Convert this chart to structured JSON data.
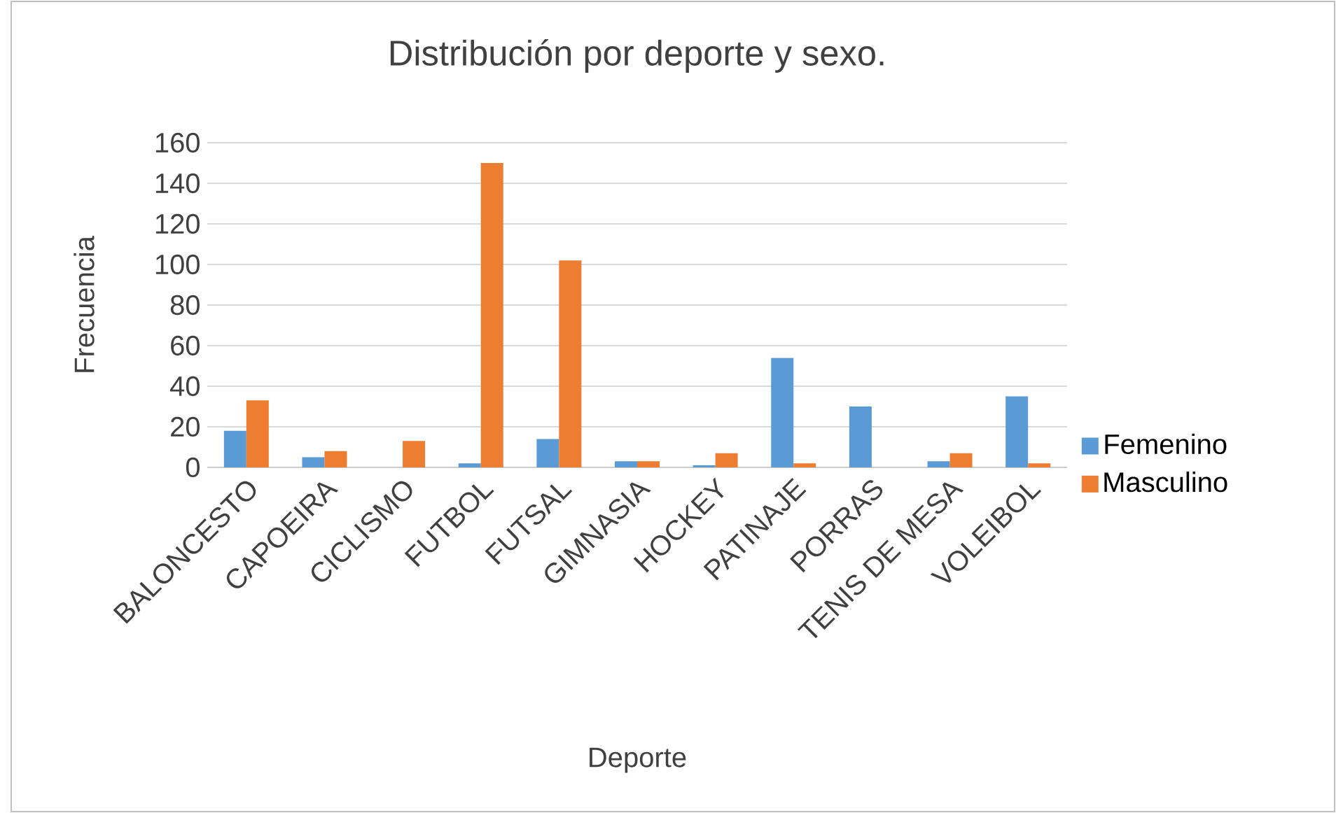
{
  "chart_data": {
    "type": "bar",
    "title": "Distribución por deporte y sexo.",
    "xlabel": "Deporte",
    "ylabel": "Frecuencia",
    "categories": [
      "BALONCESTO",
      "CAPOEIRA",
      "CICLISMO",
      "FUTBOL",
      "FUTSAL",
      "GIMNASIA",
      "HOCKEY",
      "PATINAJE",
      "PORRAS",
      "TENIS DE MESA",
      "VOLEIBOL"
    ],
    "series": [
      {
        "name": "Femenino",
        "color": "#5b9bd5",
        "values": [
          18,
          5,
          0,
          2,
          14,
          3,
          1,
          54,
          30,
          3,
          35
        ]
      },
      {
        "name": "Masculino",
        "color": "#ed7d31",
        "values": [
          33,
          8,
          13,
          150,
          102,
          3,
          7,
          2,
          0,
          7,
          2
        ]
      }
    ],
    "ylim": [
      0,
      160
    ],
    "yticks": [
      0,
      20,
      40,
      60,
      80,
      100,
      120,
      140,
      160
    ],
    "grid": "y",
    "legend": "right"
  }
}
